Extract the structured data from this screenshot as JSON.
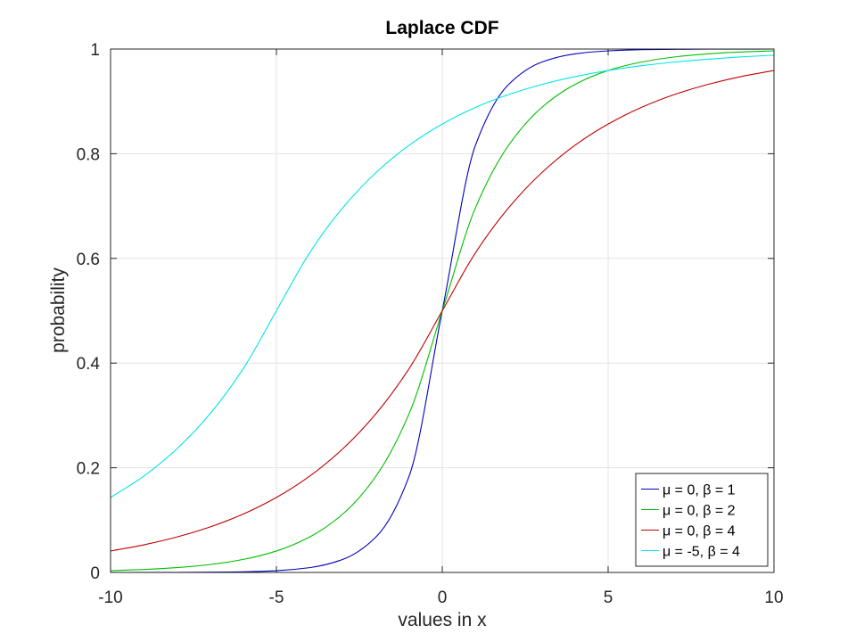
{
  "chart_data": {
    "type": "line",
    "title": "Laplace CDF",
    "xlabel": "values in x",
    "ylabel": "probability",
    "xlim": [
      -10,
      10
    ],
    "ylim": [
      0,
      1
    ],
    "xticks": [
      -10,
      -5,
      0,
      5,
      10
    ],
    "xtick_labels": [
      "-10",
      "-5",
      "0",
      "5",
      "10"
    ],
    "yticks": [
      0,
      0.2,
      0.4,
      0.6,
      0.8,
      1
    ],
    "ytick_labels": [
      "0",
      "0.2",
      "0.4",
      "0.6",
      "0.8",
      "1"
    ],
    "grid": true,
    "legend_position": "bottom-right",
    "x": [
      -10,
      -9,
      -8,
      -7,
      -6,
      -5,
      -4,
      -3,
      -2,
      -1,
      0,
      1,
      2,
      3,
      4,
      5,
      6,
      7,
      8,
      9,
      10
    ],
    "series": [
      {
        "name": "μ = 0, β = 1",
        "color": "#0000bf",
        "values": [
          2e-05,
          6e-05,
          0.00017,
          0.00046,
          0.00124,
          0.00337,
          0.00916,
          0.0249,
          0.0677,
          0.1839,
          0.5,
          0.8161,
          0.9323,
          0.9751,
          0.9908,
          0.9966,
          0.9988,
          0.9995,
          0.9998,
          0.9999,
          1.0
        ]
      },
      {
        "name": "μ = 0, β = 2",
        "color": "#00bf00",
        "values": [
          0.0034,
          0.0056,
          0.0092,
          0.0151,
          0.0249,
          0.041,
          0.0677,
          0.1116,
          0.1839,
          0.3033,
          0.5,
          0.6967,
          0.8161,
          0.8884,
          0.9323,
          0.959,
          0.9751,
          0.9849,
          0.9908,
          0.9944,
          0.9966
        ]
      },
      {
        "name": "μ = 0, β = 4",
        "color": "#bf0000",
        "values": [
          0.041,
          0.0527,
          0.0677,
          0.0869,
          0.1116,
          0.1433,
          0.1839,
          0.2362,
          0.3033,
          0.3894,
          0.5,
          0.6106,
          0.6967,
          0.7638,
          0.8161,
          0.8567,
          0.8884,
          0.9131,
          0.9323,
          0.9473,
          0.959
        ]
      },
      {
        "name": "μ = -5, β = 4",
        "color": "#00e5e5",
        "values": [
          0.1433,
          0.1839,
          0.2362,
          0.3033,
          0.3894,
          0.5,
          0.6106,
          0.6967,
          0.7638,
          0.8161,
          0.8567,
          0.8884,
          0.9131,
          0.9323,
          0.9473,
          0.959,
          0.9681,
          0.9751,
          0.9806,
          0.9849,
          0.9883
        ]
      }
    ]
  }
}
